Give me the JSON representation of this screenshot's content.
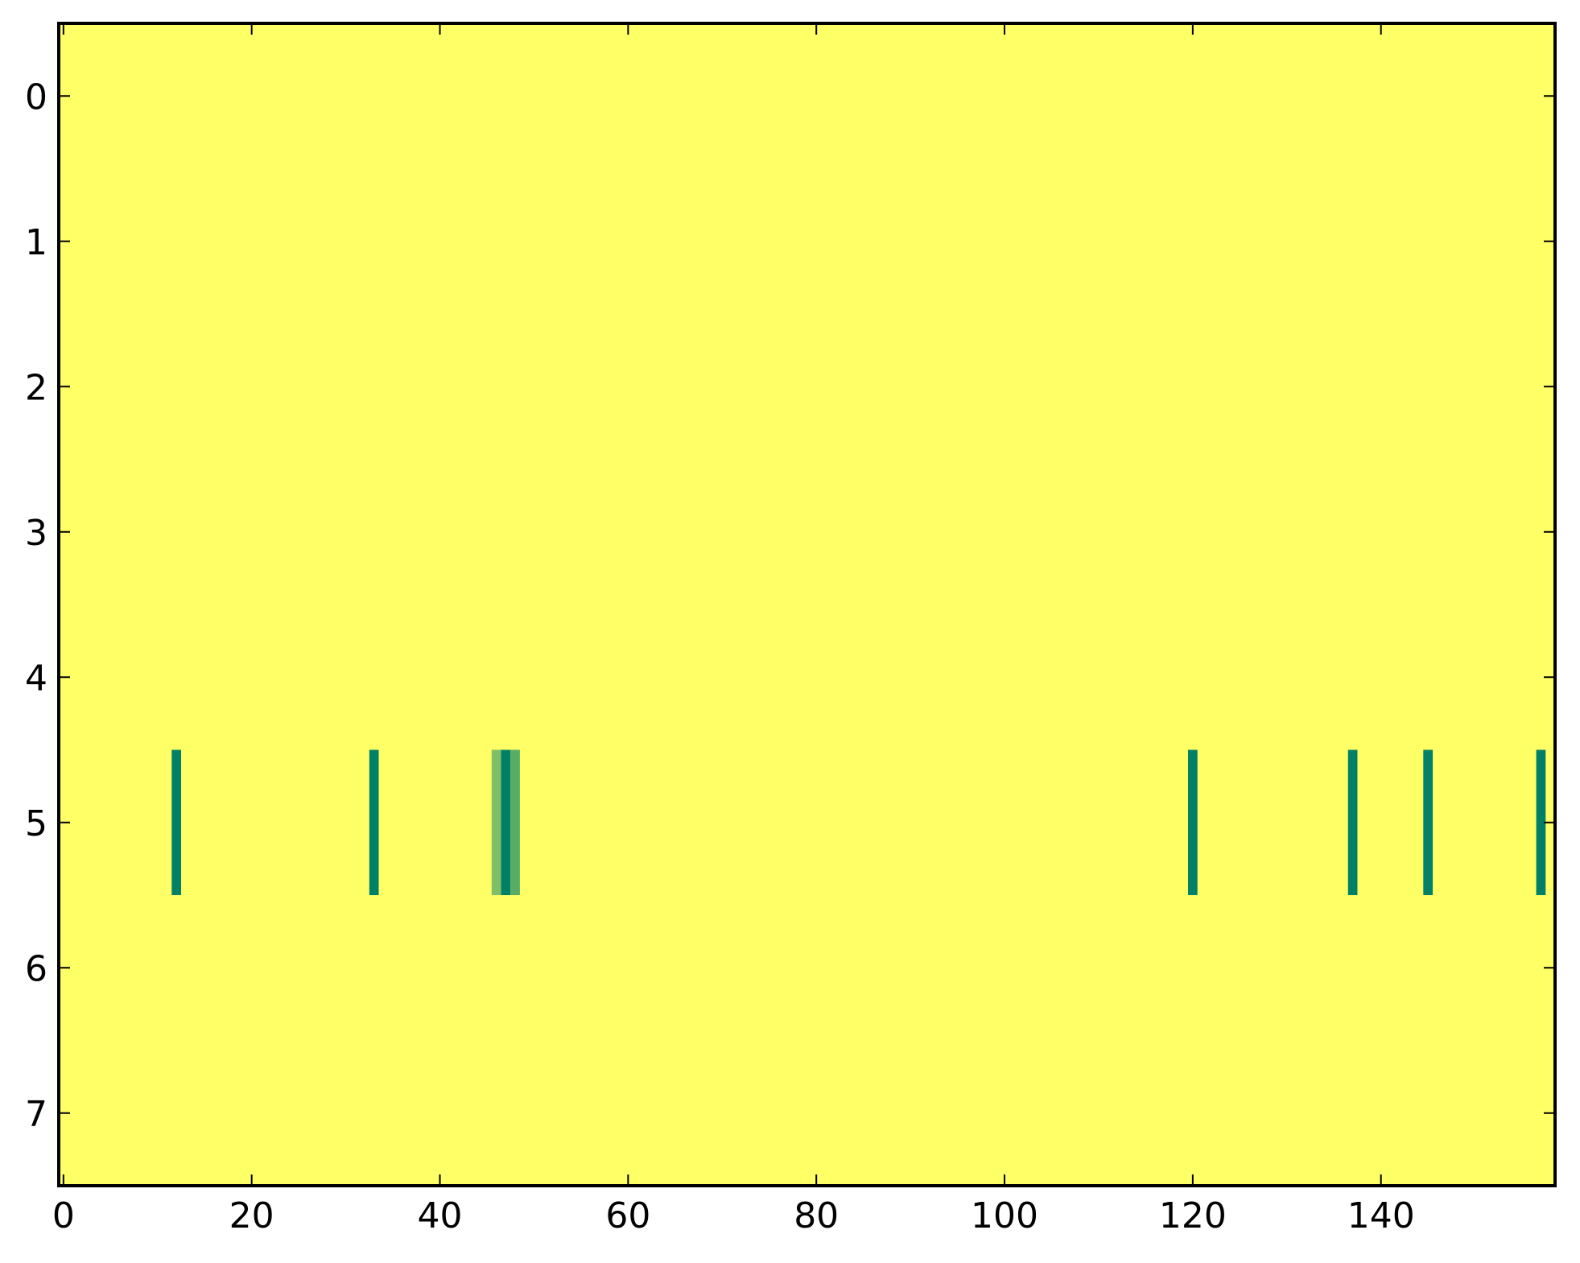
{
  "chart_data": {
    "type": "heatmap",
    "title": "",
    "xlabel": "",
    "ylabel": "",
    "colormap": "summer",
    "n_rows": 8,
    "n_cols": 159,
    "xlim": [
      -0.5,
      158.5
    ],
    "ylim": [
      7.5,
      -0.5
    ],
    "x_ticks": [
      0,
      20,
      40,
      60,
      80,
      100,
      120,
      140
    ],
    "x_tick_labels": [
      "0",
      "20",
      "40",
      "60",
      "80",
      "100",
      "120",
      "140"
    ],
    "y_ticks": [
      0,
      1,
      2,
      3,
      4,
      5,
      6,
      7
    ],
    "y_tick_labels": [
      "0",
      "1",
      "2",
      "3",
      "4",
      "5",
      "6",
      "7"
    ],
    "default_value": 1,
    "value_range": [
      0,
      1
    ],
    "nonDefault_cells": [
      {
        "row": 5,
        "col": 12,
        "value": 0
      },
      {
        "row": 5,
        "col": 33,
        "value": 0
      },
      {
        "row": 5,
        "col": 46,
        "value": 0.5
      },
      {
        "row": 5,
        "col": 47,
        "value": 0
      },
      {
        "row": 5,
        "col": 48,
        "value": 0.35
      },
      {
        "row": 5,
        "col": 120,
        "value": 0
      },
      {
        "row": 5,
        "col": 137,
        "value": 0
      },
      {
        "row": 5,
        "col": 145,
        "value": 0
      },
      {
        "row": 5,
        "col": 157,
        "value": 0
      }
    ],
    "grid": false,
    "colors": {
      "max": "#ffff66",
      "min": "#008066"
    }
  }
}
